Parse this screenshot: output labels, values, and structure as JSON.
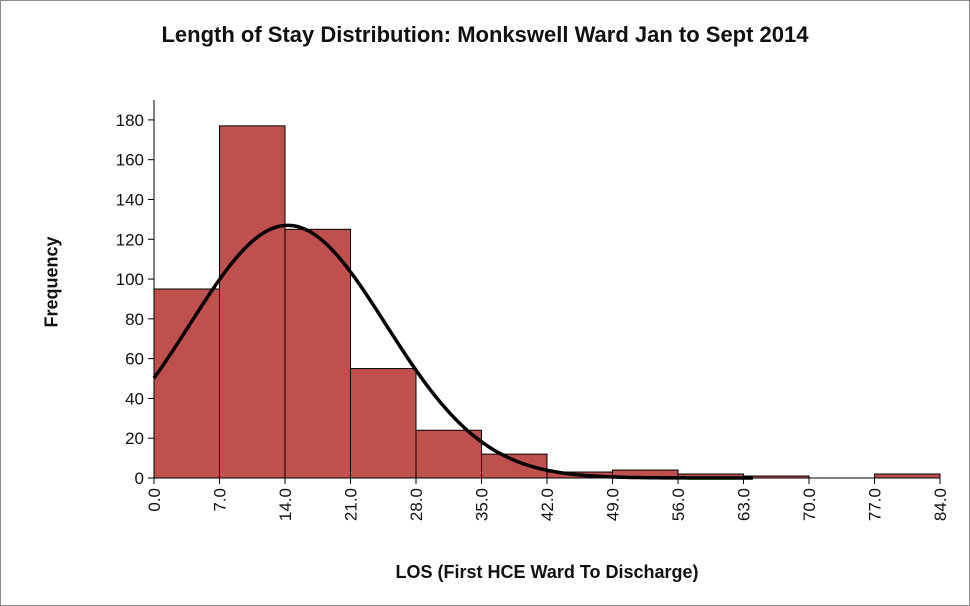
{
  "chart_data": {
    "type": "bar",
    "title": "Length of Stay Distribution: Monkswell Ward Jan to Sept 2014",
    "xlabel": "LOS (First HCE Ward To Discharge)",
    "ylabel": "Frequency",
    "x_ticks": [
      "0.0",
      "7.0",
      "14.0",
      "21.0",
      "28.0",
      "35.0",
      "42.0",
      "49.0",
      "56.0",
      "63.0",
      "70.0",
      "77.0",
      "84.0"
    ],
    "y_ticks": [
      "0",
      "20",
      "40",
      "60",
      "80",
      "100",
      "120",
      "140",
      "160",
      "180"
    ],
    "xlim": [
      0,
      84
    ],
    "ylim": [
      0,
      190
    ],
    "bins": [
      {
        "start": 0,
        "end": 7,
        "value": 95
      },
      {
        "start": 7,
        "end": 14,
        "value": 177
      },
      {
        "start": 14,
        "end": 21,
        "value": 125
      },
      {
        "start": 21,
        "end": 28,
        "value": 55
      },
      {
        "start": 28,
        "end": 35,
        "value": 24
      },
      {
        "start": 35,
        "end": 42,
        "value": 12
      },
      {
        "start": 42,
        "end": 49,
        "value": 3
      },
      {
        "start": 49,
        "end": 56,
        "value": 4
      },
      {
        "start": 56,
        "end": 63,
        "value": 2
      },
      {
        "start": 63,
        "end": 70,
        "value": 1
      },
      {
        "start": 70,
        "end": 77,
        "value": 0
      },
      {
        "start": 77,
        "end": 84,
        "value": 2
      }
    ],
    "fit_curve": {
      "type": "normal",
      "mean": 14.3,
      "sd": 10.5,
      "peak": 127
    },
    "bar_color": "#c0504d",
    "bar_edge_color": "#000000",
    "curve_color": "#000000",
    "grid": false,
    "legend": "none"
  }
}
